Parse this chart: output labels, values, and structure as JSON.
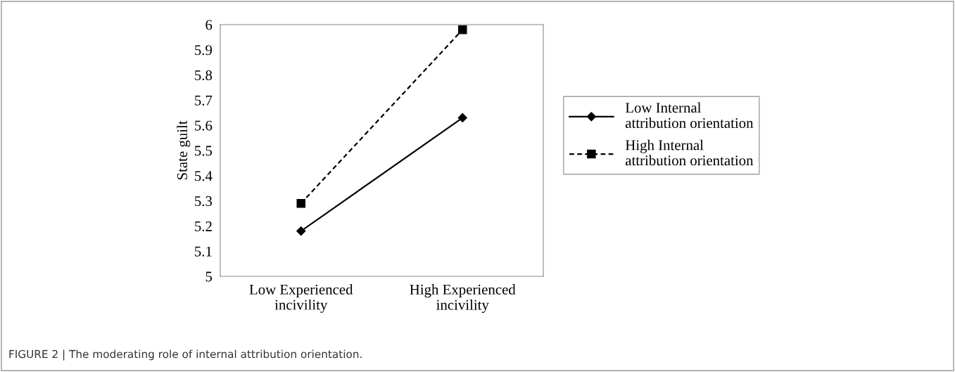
{
  "chart_data": {
    "type": "line",
    "ylabel": "State guilt",
    "categories": [
      "Low Experienced\nincivility",
      "High Experienced\nincivility"
    ],
    "series": [
      {
        "name": "Low Internal\nattribution orientation",
        "color": "#000000",
        "values": [
          5.18,
          5.63
        ],
        "marker": "diamond",
        "line_style": "solid"
      },
      {
        "name": "High Internal\nattribution orientation",
        "color": "#000000",
        "values": [
          5.29,
          5.98
        ],
        "marker": "square",
        "line_style": "dashed"
      }
    ],
    "ylim": [
      5,
      6
    ],
    "yticks": [
      5,
      5.1,
      5.2,
      5.3,
      5.4,
      5.5,
      5.6,
      5.7,
      5.8,
      5.9,
      6
    ],
    "grid": false,
    "legend": "right",
    "annotations": [
      "FIGURE 2 | The moderating role of internal attribution orientation."
    ]
  }
}
